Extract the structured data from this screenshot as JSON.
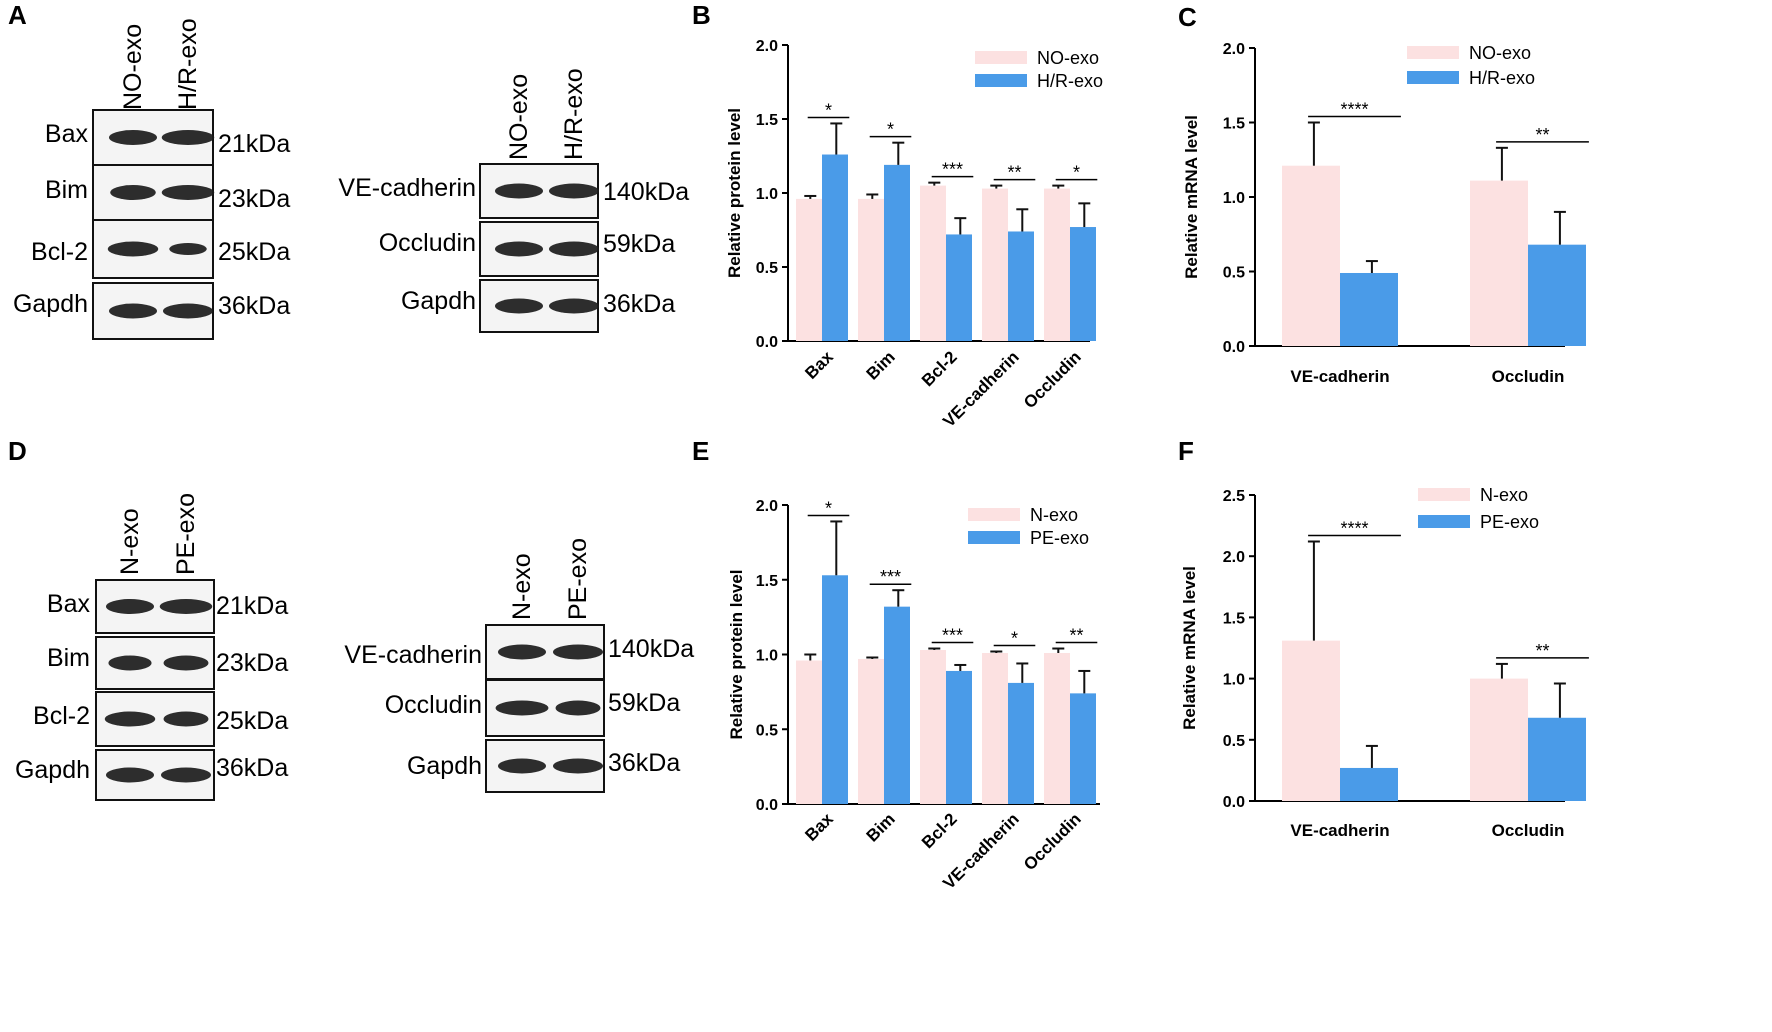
{
  "figure": {
    "panels": [
      "A",
      "B",
      "C",
      "D",
      "E",
      "F"
    ]
  },
  "blots": [
    {
      "id": "blot-a-apoptosis",
      "lanes": [
        "NO-exo",
        "H/R-exo"
      ],
      "rows": [
        {
          "protein": "Bax",
          "size": "21kDa"
        },
        {
          "protein": "Bim",
          "size": "23kDa"
        },
        {
          "protein": "Bcl-2",
          "size": "25kDa"
        },
        {
          "protein": "Gapdh",
          "size": "36kDa"
        }
      ]
    },
    {
      "id": "blot-a-junction",
      "lanes": [
        "NO-exo",
        "H/R-exo"
      ],
      "rows": [
        {
          "protein": "VE-cadherin",
          "size": "140kDa"
        },
        {
          "protein": "Occludin",
          "size": "59kDa"
        },
        {
          "protein": "Gapdh",
          "size": "36kDa"
        }
      ]
    },
    {
      "id": "blot-d-apoptosis",
      "lanes": [
        "N-exo",
        "PE-exo"
      ],
      "rows": [
        {
          "protein": "Bax",
          "size": "21kDa"
        },
        {
          "protein": "Bim",
          "size": "23kDa"
        },
        {
          "protein": "Bcl-2",
          "size": "25kDa"
        },
        {
          "protein": "Gapdh",
          "size": "36kDa"
        }
      ]
    },
    {
      "id": "blot-d-junction",
      "lanes": [
        "N-exo",
        "PE-exo"
      ],
      "rows": [
        {
          "protein": "VE-cadherin",
          "size": "140kDa"
        },
        {
          "protein": "Occludin",
          "size": "59kDa"
        },
        {
          "protein": "Gapdh",
          "size": "36kDa"
        }
      ]
    }
  ],
  "chart_data": [
    {
      "panel": "B",
      "type": "bar",
      "ylabel": "Relative protein level",
      "ylim": [
        0,
        2.0
      ],
      "yticks": [
        "0.0",
        "0.5",
        "1.0",
        "1.5",
        "2.0"
      ],
      "categories": [
        "Bax",
        "Bim",
        "Bcl-2",
        "VE-cadherin",
        "Occludin"
      ],
      "series": [
        {
          "name": "NO-exo",
          "color": "#fce1e1",
          "values": [
            0.96,
            0.96,
            1.05,
            1.03,
            1.03
          ],
          "errors": [
            0.02,
            0.03,
            0.02,
            0.02,
            0.02
          ]
        },
        {
          "name": "H/R-exo",
          "color": "#4a9be8",
          "values": [
            1.26,
            1.19,
            0.72,
            0.74,
            0.77
          ],
          "errors": [
            0.21,
            0.15,
            0.11,
            0.15,
            0.16
          ]
        }
      ],
      "significance": [
        "*",
        "*",
        "***",
        "**",
        "*"
      ],
      "legend": "top-right"
    },
    {
      "panel": "C",
      "type": "bar",
      "ylabel": "Relative mRNA level",
      "ylim": [
        0,
        2.0
      ],
      "yticks": [
        "0.0",
        "0.5",
        "1.0",
        "1.5",
        "2.0"
      ],
      "categories": [
        "VE-cadherin",
        "Occludin"
      ],
      "series": [
        {
          "name": "NO-exo",
          "color": "#fce1e1",
          "values": [
            1.21,
            1.11
          ],
          "errors": [
            0.29,
            0.22
          ]
        },
        {
          "name": "H/R-exo",
          "color": "#4a9be8",
          "values": [
            0.49,
            0.68
          ],
          "errors": [
            0.08,
            0.22
          ]
        }
      ],
      "significance": [
        "****",
        "**"
      ],
      "legend": "top-right"
    },
    {
      "panel": "E",
      "type": "bar",
      "ylabel": "Relative protein level",
      "ylim": [
        0,
        2.0
      ],
      "yticks": [
        "0.0",
        "0.5",
        "1.0",
        "1.5",
        "2.0"
      ],
      "categories": [
        "Bax",
        "Bim",
        "Bcl-2",
        "VE-cadherin",
        "Occludin"
      ],
      "series": [
        {
          "name": "N-exo",
          "color": "#fce1e1",
          "values": [
            0.96,
            0.97,
            1.03,
            1.01,
            1.01
          ],
          "errors": [
            0.04,
            0.01,
            0.01,
            0.01,
            0.03
          ]
        },
        {
          "name": "PE-exo",
          "color": "#4a9be8",
          "values": [
            1.53,
            1.32,
            0.89,
            0.81,
            0.74
          ],
          "errors": [
            0.36,
            0.11,
            0.04,
            0.13,
            0.15
          ]
        }
      ],
      "significance": [
        "*",
        "***",
        "***",
        "*",
        "**"
      ],
      "legend": "top-right"
    },
    {
      "panel": "F",
      "type": "bar",
      "ylabel": "Relative mRNA level",
      "ylim": [
        0,
        2.5
      ],
      "yticks": [
        "0.0",
        "0.5",
        "1.0",
        "1.5",
        "2.0",
        "2.5"
      ],
      "categories": [
        "VE-cadherin",
        "Occludin"
      ],
      "series": [
        {
          "name": "N-exo",
          "color": "#fce1e1",
          "values": [
            1.31,
            1.0
          ],
          "errors": [
            0.81,
            0.12
          ]
        },
        {
          "name": "PE-exo",
          "color": "#4a9be8",
          "values": [
            0.27,
            0.68
          ],
          "errors": [
            0.18,
            0.28
          ]
        }
      ],
      "significance": [
        "****",
        "**"
      ],
      "legend": "top-right"
    }
  ]
}
